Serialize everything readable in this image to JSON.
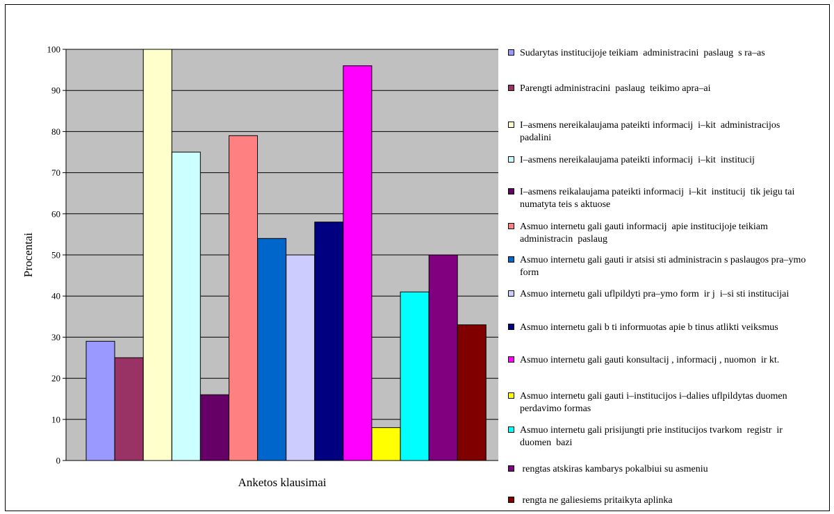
{
  "chart_data": {
    "type": "bar",
    "xlabel": "Anketos klausimai",
    "ylabel": "Procentai",
    "ylim": [
      0,
      100
    ],
    "yticks": [
      "0",
      "10",
      "20",
      "30",
      "40",
      "50",
      "60",
      "70",
      "80",
      "90",
      "100"
    ],
    "grid": "horizontal",
    "legend_position": "right",
    "series": [
      {
        "name": "Sudarytas institucijoje teikiam  administracini  paslaug  s ra–as",
        "value": 29,
        "color": "#9999ff"
      },
      {
        "name": "Parengti administracini  paslaug  teikimo apra–ai",
        "value": 25,
        "color": "#993366"
      },
      {
        "name": "I–asmens nereikalaujama pateikti informacij  i–kit  administracijos padalini",
        "value": 100,
        "color": "#ffffcc"
      },
      {
        "name": "I–asmens nereikalaujama pateikti informacij  i–kit  institucij",
        "value": 75,
        "color": "#ccffff"
      },
      {
        "name": "I–asmens reikalaujama pateikti informacij  i–kit  institucij  tik jeigu tai numatyta teis s aktuose",
        "value": 16,
        "color": "#660066"
      },
      {
        "name": "Asmuo internetu gali gauti informacij  apie institucijoje teikiam  administracin  paslaug",
        "value": 79,
        "color": "#ff8080"
      },
      {
        "name": "Asmuo internetu gali gauti ir atsisi sti administracin s paslaugos pra–ymo form",
        "value": 54,
        "color": "#0066cc"
      },
      {
        "name": "Asmuo internetu gali uflpildyti pra–ymo form  ir j  i–si sti institucijai",
        "value": 50,
        "color": "#ccccff"
      },
      {
        "name": "Asmuo internetu gali b ti informuotas apie b tinus atlikti veiksmus",
        "value": 58,
        "color": "#000080"
      },
      {
        "name": "Asmuo internetu gali gauti konsultacij , informacij , nuomon  ir kt.",
        "value": 96,
        "color": "#ff00ff"
      },
      {
        "name": "Asmuo internetu gali gauti i–institucijos i–dalies uflpildytas duomen  perdavimo formas",
        "value": 8,
        "color": "#ffff00"
      },
      {
        "name": "Asmuo internetu gali prisijungti prie institucijos tvarkom  registr  ir duomen  bazi",
        "value": 41,
        "color": "#00ffff"
      },
      {
        "name": " rengtas atskiras kambarys pokalbiui su asmeniu",
        "value": 50,
        "color": "#800080"
      },
      {
        "name": " rengta ne galiesiems pritaikyta aplinka",
        "value": 33,
        "color": "#800000"
      }
    ],
    "plot_background": "#c0c0c0"
  }
}
